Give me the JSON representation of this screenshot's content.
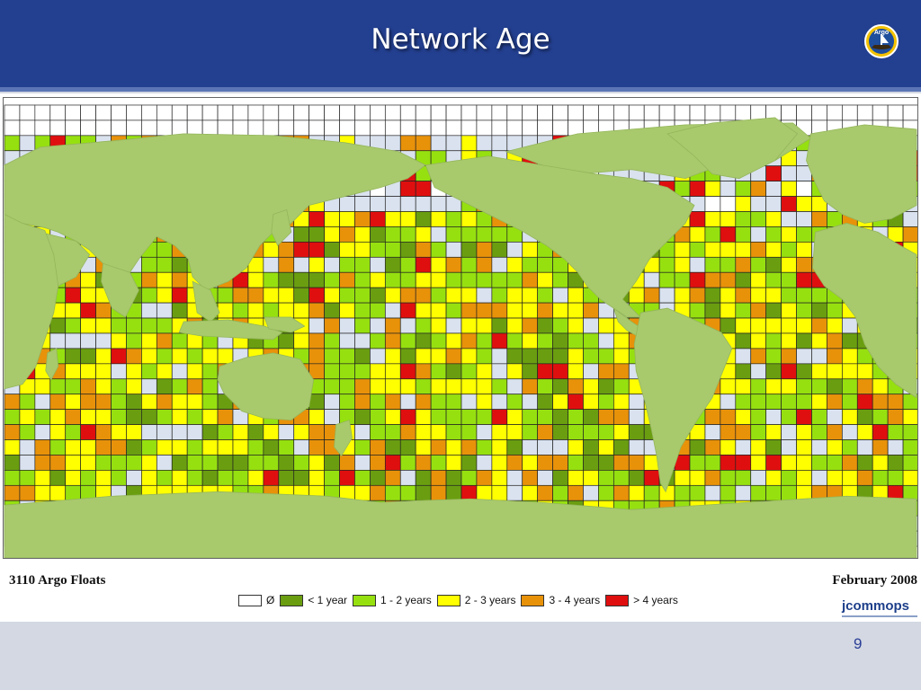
{
  "slide": {
    "title": "Network Age",
    "page_number": "9",
    "logo_text": "Argo"
  },
  "map": {
    "floats_count": "3110 Argo Floats",
    "date": "February 2008",
    "legend": [
      {
        "label": "Ø",
        "color": "#ffffff"
      },
      {
        "label": "< 1 year",
        "color": "#6a9e10"
      },
      {
        "label": "1 - 2 years",
        "color": "#96e010"
      },
      {
        "label": "2 - 3 years",
        "color": "#ffff00"
      },
      {
        "label": "3 - 4 years",
        "color": "#e8920a"
      },
      {
        "label": "> 4 years",
        "color": "#e00f0f"
      }
    ],
    "colors": {
      "land": "#a9c96d",
      "empty_cell": "#d9e2ee",
      "grid_line": "#222222"
    },
    "jcommops_text": "jcommops"
  }
}
